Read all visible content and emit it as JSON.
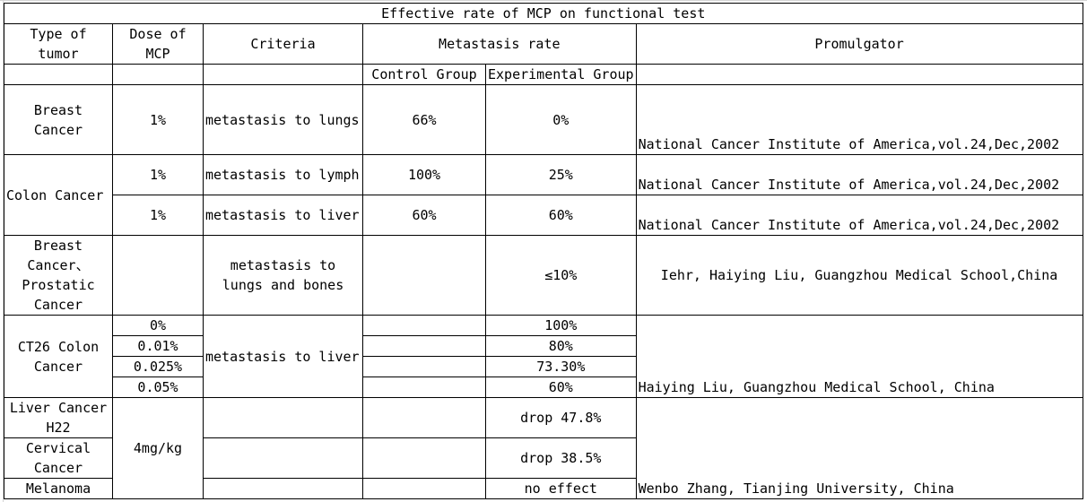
{
  "table": {
    "title": "Effective rate of MCP on functional test",
    "headers": {
      "type_of_tumor": [
        "Type of",
        "tumor"
      ],
      "dose": [
        "Dose of",
        "MCP"
      ],
      "criteria": "Criteria",
      "metastasis_rate": "Metastasis rate",
      "control_group": "Control Group",
      "experimental_group": "Experimental Group",
      "promulgator": "Promulgator"
    },
    "breast": {
      "tumor": [
        "Breast",
        "Cancer"
      ],
      "dose": "1%",
      "criteria": "metastasis to lungs",
      "control": "66%",
      "experimental": "0%",
      "promulgator": "National Cancer Institute of America,vol.24,Dec,2002"
    },
    "colon": {
      "tumor": "Colon Cancer",
      "rows": [
        {
          "dose": "1%",
          "criteria": "metastasis to lymph",
          "control": "100%",
          "experimental": "25%",
          "promulgator": "National Cancer Institute of America,vol.24,Dec,2002"
        },
        {
          "dose": "1%",
          "criteria": "metastasis to liver",
          "control": "60%",
          "experimental": "60%",
          "promulgator": "National Cancer Institute of America,vol.24,Dec,2002"
        }
      ]
    },
    "breast_prostatic": {
      "tumor": [
        "Breast",
        "Cancer、",
        "Prostatic",
        "Cancer"
      ],
      "criteria": [
        "metastasis to",
        "lungs and bones"
      ],
      "experimental": "≤10%",
      "promulgator": "Iehr, Haiying Liu, Guangzhou Medical School,China"
    },
    "ct26": {
      "tumor": [
        "CT26 Colon",
        "Cancer"
      ],
      "criteria": "metastasis to liver",
      "rows": [
        {
          "dose": "0%",
          "experimental": "100%"
        },
        {
          "dose": "0.01%",
          "experimental": "80%"
        },
        {
          "dose": "0.025%",
          "experimental": "73.30%"
        },
        {
          "dose": "0.05%",
          "experimental": "60%"
        }
      ],
      "promulgator": "Haiying Liu, Guangzhou Medical School, China"
    },
    "last_group": {
      "dose": "4mg/kg",
      "promulgator": "Wenbo Zhang, Tianjing University, China",
      "rows": [
        {
          "tumor": [
            "Liver Cancer",
            "H22"
          ],
          "experimental": "drop 47.8%"
        },
        {
          "tumor": [
            "Cervical",
            "Cancer"
          ],
          "experimental": "drop 38.5%"
        },
        {
          "tumor": [
            "Melanoma"
          ],
          "experimental": "no effect"
        }
      ]
    }
  }
}
